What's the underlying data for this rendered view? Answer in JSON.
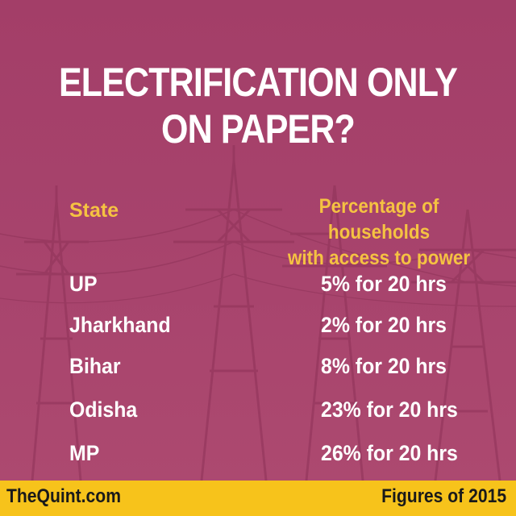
{
  "title": {
    "line1": "ELECTRIFICATION ONLY",
    "line2": "ON  PAPER?"
  },
  "table": {
    "header_state": "State",
    "header_pct_line1": "Percentage of households",
    "header_pct_line2": "with access to power",
    "rows": [
      {
        "state": "UP",
        "value": "5% for 20 hrs"
      },
      {
        "state": "Jharkhand",
        "value": "2% for 20 hrs"
      },
      {
        "state": "Bihar",
        "value": "8% for 20 hrs"
      },
      {
        "state": "Odisha",
        "value": "23% for 20 hrs"
      },
      {
        "state": "MP",
        "value": "26% for 20 hrs"
      }
    ]
  },
  "footer": {
    "brand": "TheQuint.com",
    "note": "Figures of 2015"
  },
  "colors": {
    "background": "#a8446d",
    "heading": "#f5c242",
    "text": "#ffffff",
    "footer": "#f7c31b"
  }
}
